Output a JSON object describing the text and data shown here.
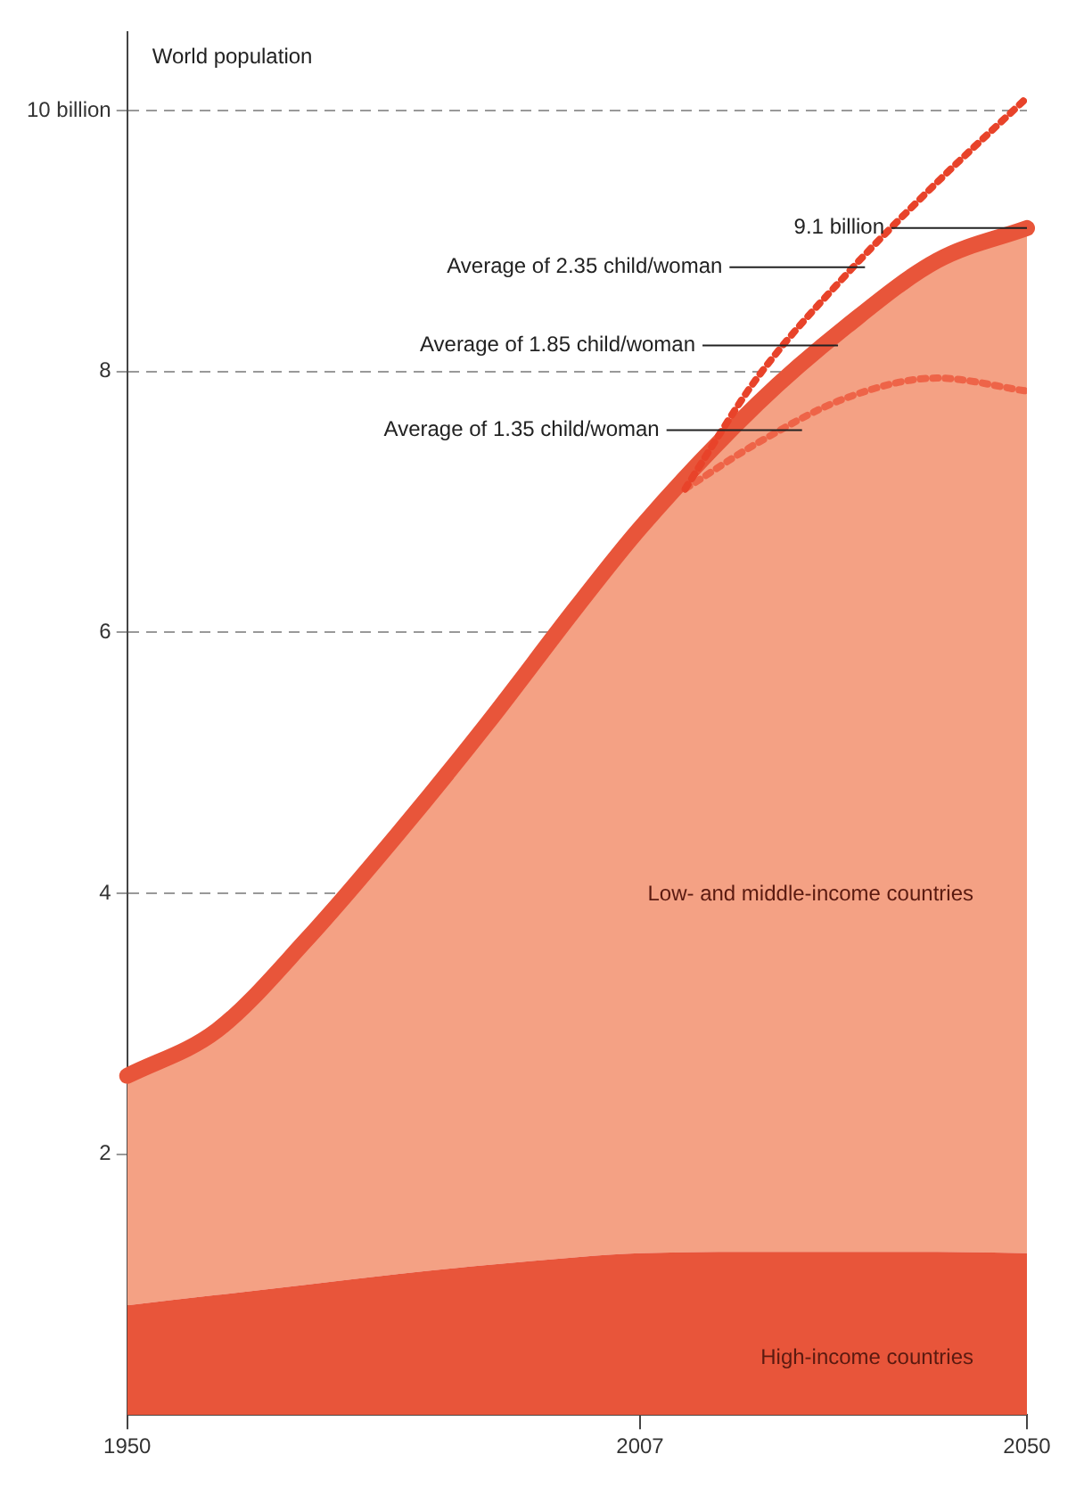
{
  "chart_data": {
    "type": "area",
    "ylabel": "World population",
    "stacked": true,
    "legend": false,
    "grid": "y",
    "line_style": "dashed",
    "xlim": [
      1950,
      2050
    ],
    "xticks": [
      1950,
      2007,
      2050
    ],
    "ylim": [
      0,
      10.6
    ],
    "yticks": [
      2,
      4,
      6,
      8,
      {
        "value": 10,
        "label": "10 billion"
      }
    ],
    "series": [
      {
        "type": "line",
        "line_style": "dotted",
        "color": "#e8432a",
        "x": [
          2012,
          2020,
          2030,
          2040,
          2050
        ],
        "values": [
          7.1,
          7.95,
          8.75,
          9.45,
          10.1
        ]
      },
      {
        "type": "line",
        "line_style": "dotted",
        "color": "#ee6448",
        "x": [
          2012,
          2020,
          2030,
          2040,
          2050
        ],
        "values": [
          7.1,
          7.45,
          7.8,
          7.95,
          7.85
        ]
      },
      {
        "name": "High-income countries",
        "color": "#e8553a",
        "x": [
          1950,
          1960,
          1970,
          1980,
          1990,
          2000,
          2007,
          2020,
          2030,
          2040,
          2050
        ],
        "values": [
          0.84,
          0.92,
          1.0,
          1.08,
          1.15,
          1.21,
          1.24,
          1.25,
          1.25,
          1.25,
          1.24
        ]
      },
      {
        "name": "Low- and middle-income countries",
        "color": "#f4a184",
        "x": [
          1950,
          1960,
          1970,
          1980,
          1990,
          2000,
          2007,
          2020,
          2030,
          2040,
          2050
        ],
        "values": [
          1.76,
          2.03,
          2.65,
          3.37,
          4.15,
          4.99,
          5.56,
          6.5,
          7.1,
          7.6,
          7.86
        ]
      }
    ],
    "annotations": [
      {
        "text": "9.1 billion",
        "x": 2050,
        "y": 9.1
      },
      {
        "text": "Average of 2.35 child/woman",
        "x": 2032,
        "y": 8.8
      },
      {
        "text": "Average of 1.85 child/woman",
        "x": 2029,
        "y": 8.2
      },
      {
        "text": "Average of 1.35 child/woman",
        "x": 2025,
        "y": 7.55
      }
    ]
  }
}
